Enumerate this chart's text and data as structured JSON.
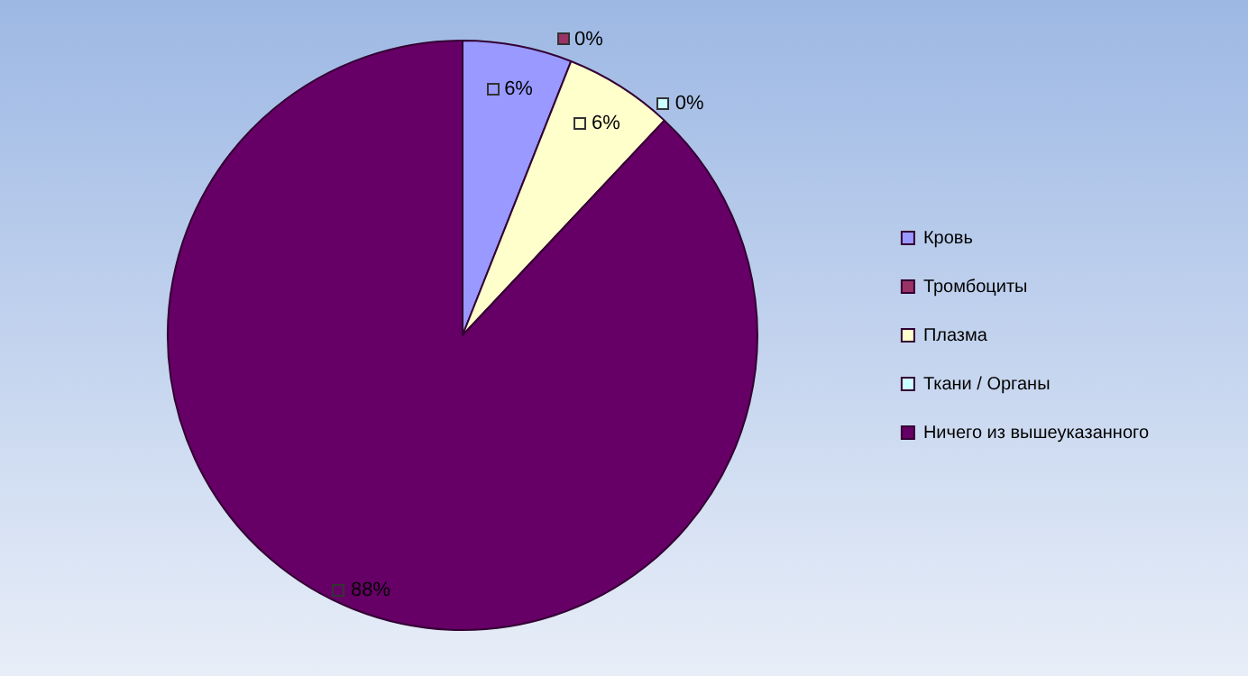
{
  "chart_data": {
    "type": "pie",
    "categories": [
      "Кровь",
      "Тромбоциты",
      "Плазма",
      "Ткани / Органы",
      "Ничего из вышеуказанного"
    ],
    "values": [
      6,
      0,
      6,
      0,
      88
    ],
    "colors": [
      "#9999ff",
      "#993366",
      "#ffffcc",
      "#ccffff",
      "#660066"
    ],
    "value_labels": [
      "6%",
      "0%",
      "6%",
      "0%",
      "88%"
    ],
    "legend": "right"
  }
}
